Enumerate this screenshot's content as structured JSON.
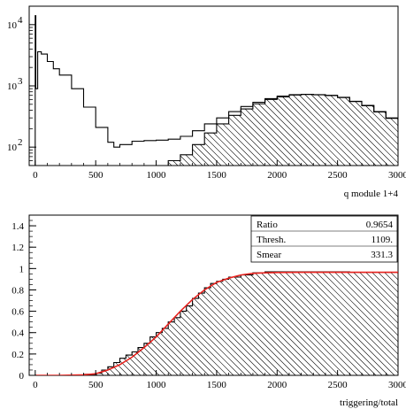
{
  "chart_data": [
    {
      "type": "line",
      "xlabel": "q module 1+4",
      "ylabel": "",
      "xlim": [
        -50,
        3000
      ],
      "ylim": [
        50,
        20000
      ],
      "yscale": "log",
      "xticks": [
        "0",
        "500",
        "1000",
        "1500",
        "2000",
        "2500",
        "3000"
      ],
      "yticks": [
        {
          "value": 100,
          "base": "10",
          "exp": "2"
        },
        {
          "value": 1000,
          "base": "10",
          "exp": "3"
        },
        {
          "value": 10000,
          "base": "10",
          "exp": "4"
        }
      ],
      "series": [
        {
          "style": "step-outline",
          "x": [
            -20,
            0,
            5,
            20,
            50,
            100,
            150,
            200,
            300,
            400,
            500,
            600,
            650,
            700,
            800,
            900,
            1000,
            1100,
            1200,
            1300,
            1400,
            1500,
            1600,
            1700,
            1800,
            1900,
            2000,
            2100,
            2200,
            2300,
            2400,
            2500,
            2600,
            2700,
            2800,
            2900,
            3000
          ],
          "y": [
            0,
            14000,
            900,
            3600,
            3300,
            2500,
            1900,
            1500,
            900,
            450,
            210,
            120,
            100,
            110,
            125,
            128,
            130,
            135,
            150,
            185,
            240,
            300,
            380,
            460,
            540,
            620,
            680,
            720,
            730,
            720,
            700,
            650,
            560,
            480,
            380,
            300,
            200
          ]
        },
        {
          "style": "hatched-fill",
          "x": [
            1000,
            1100,
            1200,
            1300,
            1400,
            1500,
            1600,
            1700,
            1800,
            1900,
            2000,
            2100,
            2200,
            2300,
            2400,
            2500,
            2600,
            2700,
            2800,
            2900,
            3000
          ],
          "y": [
            50,
            60,
            75,
            110,
            170,
            240,
            330,
            420,
            510,
            600,
            660,
            710,
            725,
            715,
            695,
            645,
            555,
            475,
            375,
            295,
            195
          ]
        }
      ]
    },
    {
      "type": "line",
      "xlabel": "triggering/total",
      "ylabel": "",
      "xlim": [
        -50,
        3000
      ],
      "ylim": [
        0,
        1.5
      ],
      "xticks": [
        "0",
        "500",
        "1000",
        "1500",
        "2000",
        "2500",
        "3000"
      ],
      "yticks": [
        "0",
        "0.2",
        "0.4",
        "0.6",
        "0.8",
        "1",
        "1.2",
        "1.4"
      ],
      "series": [
        {
          "style": "hatched-step",
          "x": [
            0,
            200,
            400,
            500,
            550,
            600,
            650,
            700,
            750,
            800,
            850,
            900,
            950,
            1000,
            1050,
            1100,
            1150,
            1200,
            1250,
            1300,
            1350,
            1400,
            1450,
            1500,
            1550,
            1600,
            1700,
            1800,
            1900,
            2000,
            2200,
            2400,
            2600,
            2800,
            3000
          ],
          "y": [
            0,
            0,
            0.01,
            0.02,
            0.05,
            0.08,
            0.12,
            0.16,
            0.19,
            0.22,
            0.26,
            0.3,
            0.36,
            0.4,
            0.44,
            0.5,
            0.54,
            0.6,
            0.65,
            0.72,
            0.77,
            0.82,
            0.86,
            0.88,
            0.9,
            0.92,
            0.94,
            0.96,
            0.97,
            0.97,
            0.97,
            0.97,
            0.965,
            0.965,
            0.96
          ]
        },
        {
          "style": "fit-curve",
          "color": "#e8231f",
          "x": [
            0,
            200,
            400,
            500,
            600,
            700,
            800,
            900,
            1000,
            1100,
            1200,
            1300,
            1400,
            1500,
            1600,
            1700,
            1800,
            1900,
            2000,
            2200,
            2400,
            2600,
            2800,
            3000
          ],
          "y": [
            0,
            0,
            0.005,
            0.015,
            0.05,
            0.1,
            0.17,
            0.26,
            0.36,
            0.48,
            0.6,
            0.71,
            0.8,
            0.87,
            0.91,
            0.94,
            0.955,
            0.96,
            0.963,
            0.965,
            0.965,
            0.965,
            0.965,
            0.965
          ]
        }
      ],
      "stats": [
        {
          "label": "Ratio",
          "value": "0.9654"
        },
        {
          "label": "Thresh.",
          "value": "1109."
        },
        {
          "label": "Smear",
          "value": "331.3"
        }
      ]
    }
  ]
}
